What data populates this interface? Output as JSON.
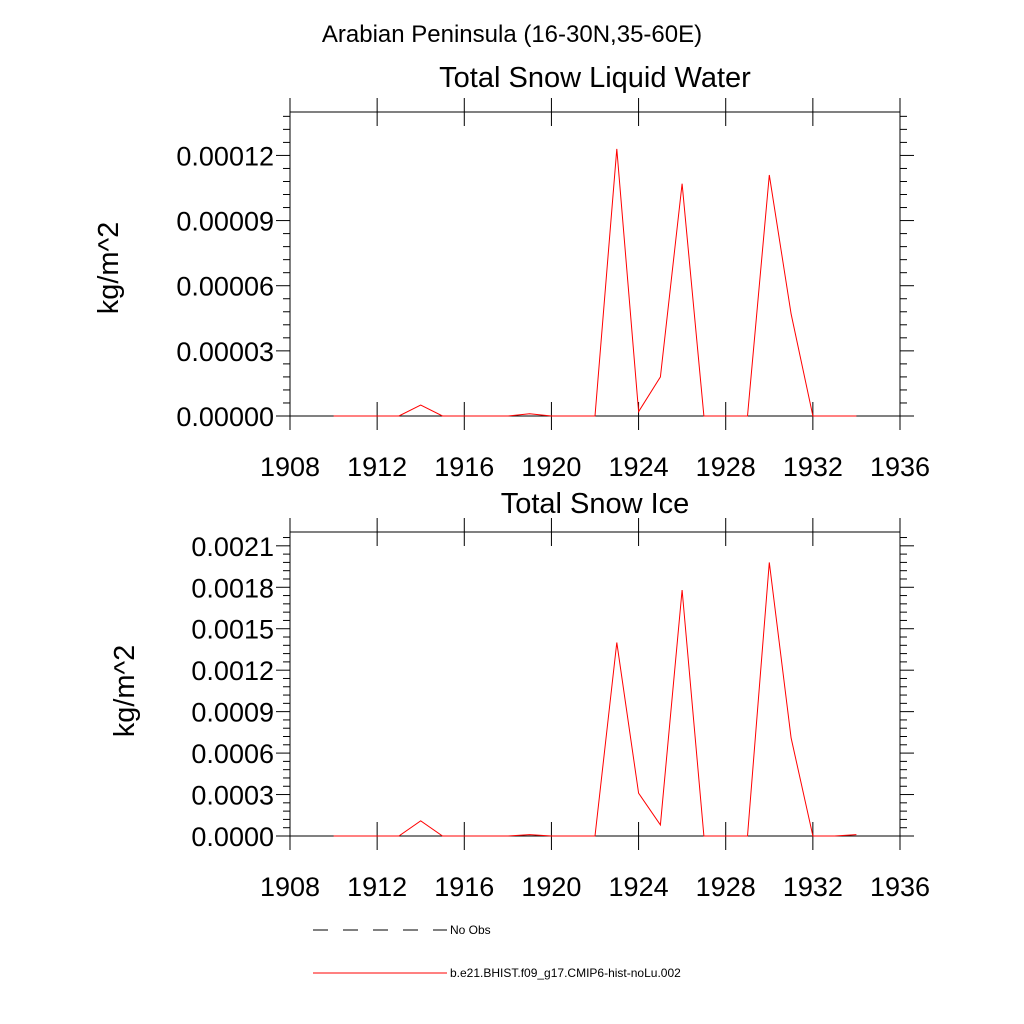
{
  "page": {
    "suptitle": "Arabian Peninsula (16-30N,35-60E)"
  },
  "colors": {
    "model_line": "#ff0000",
    "obs_line": "#000000",
    "axis": "#000000"
  },
  "legend": {
    "position": "bottom-left",
    "entries": [
      {
        "label": "No Obs",
        "style": "dashed",
        "color": "#000000"
      },
      {
        "label": "b.e21.BHIST.f09_g17.CMIP6-hist-noLu.002",
        "style": "solid",
        "color": "#ff0000"
      }
    ]
  },
  "chart_data": [
    {
      "type": "line",
      "title": "Total Snow Liquid Water",
      "xlabel": "",
      "ylabel": "kg/m^2",
      "xlim": [
        1908,
        1936
      ],
      "ylim": [
        0,
        0.00014
      ],
      "xticks": [
        1908,
        1912,
        1916,
        1920,
        1924,
        1928,
        1932,
        1936
      ],
      "xtick_labels": [
        "1908",
        "1912",
        "1916",
        "1920",
        "1924",
        "1928",
        "1932",
        "1936"
      ],
      "yticks": [
        0,
        3e-05,
        6e-05,
        9e-05,
        0.00012
      ],
      "ytick_labels": [
        "0.00000",
        "0.00003",
        "0.00006",
        "0.00009",
        "0.00012"
      ],
      "grid": false,
      "x": [
        1910,
        1911,
        1912,
        1913,
        1914,
        1915,
        1916,
        1917,
        1918,
        1919,
        1920,
        1921,
        1922,
        1923,
        1924,
        1925,
        1926,
        1927,
        1928,
        1929,
        1930,
        1931,
        1932,
        1933,
        1934
      ],
      "series": [
        {
          "name": "b.e21.BHIST.f09_g17.CMIP6-hist-noLu.002",
          "values": [
            0,
            0,
            0,
            0,
            5e-06,
            0,
            0,
            0,
            0,
            1e-06,
            0,
            0,
            0,
            0.000123,
            2e-06,
            1.8e-05,
            0.000107,
            0,
            0,
            0,
            0.000111,
            4.7e-05,
            0,
            0,
            0
          ]
        }
      ]
    },
    {
      "type": "line",
      "title": "Total Snow Ice",
      "xlabel": "",
      "ylabel": "kg/m^2",
      "xlim": [
        1908,
        1936
      ],
      "ylim": [
        0,
        0.0022
      ],
      "xticks": [
        1908,
        1912,
        1916,
        1920,
        1924,
        1928,
        1932,
        1936
      ],
      "xtick_labels": [
        "1908",
        "1912",
        "1916",
        "1920",
        "1924",
        "1928",
        "1932",
        "1936"
      ],
      "yticks": [
        0,
        0.0003,
        0.0006,
        0.0009,
        0.0012,
        0.0015,
        0.0018,
        0.0021
      ],
      "ytick_labels": [
        "0.0000",
        "0.0003",
        "0.0006",
        "0.0009",
        "0.0012",
        "0.0015",
        "0.0018",
        "0.0021"
      ],
      "grid": false,
      "x": [
        1910,
        1911,
        1912,
        1913,
        1914,
        1915,
        1916,
        1917,
        1918,
        1919,
        1920,
        1921,
        1922,
        1923,
        1924,
        1925,
        1926,
        1927,
        1928,
        1929,
        1930,
        1931,
        1932,
        1933,
        1934
      ],
      "series": [
        {
          "name": "b.e21.BHIST.f09_g17.CMIP6-hist-noLu.002",
          "values": [
            0,
            0,
            0,
            0,
            0.00011,
            0,
            0,
            0,
            0,
            1e-05,
            0,
            0,
            0,
            0.0014,
            0.00031,
            8e-05,
            0.00178,
            0,
            0,
            0,
            0.00198,
            0.00071,
            0,
            0,
            1e-05
          ]
        }
      ]
    }
  ]
}
